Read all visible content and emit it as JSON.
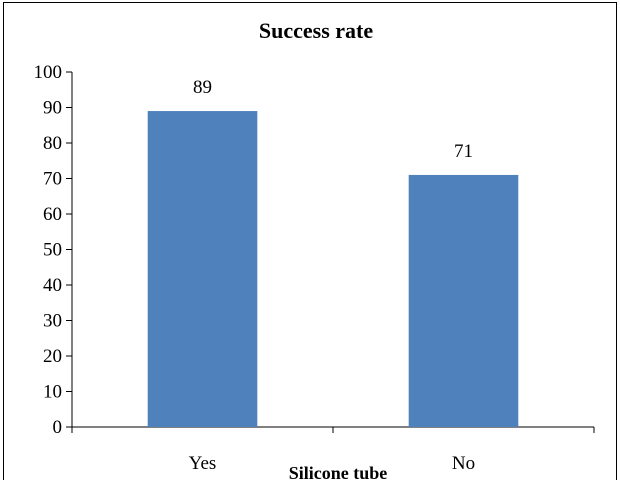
{
  "chart_data": {
    "type": "bar",
    "title": "Success rate",
    "xlabel": "Silicone tube",
    "ylabel": "",
    "categories": [
      "Yes",
      "No"
    ],
    "values": [
      89,
      71
    ],
    "data_labels": [
      "89",
      "71"
    ],
    "ylim": [
      0,
      100
    ],
    "yticks": [
      0,
      10,
      20,
      30,
      40,
      50,
      60,
      70,
      80,
      90,
      100
    ],
    "grid": false,
    "legend": "none",
    "colors": {
      "bar": "#4f81bd",
      "axis": "#000000",
      "text": "#000000"
    }
  }
}
